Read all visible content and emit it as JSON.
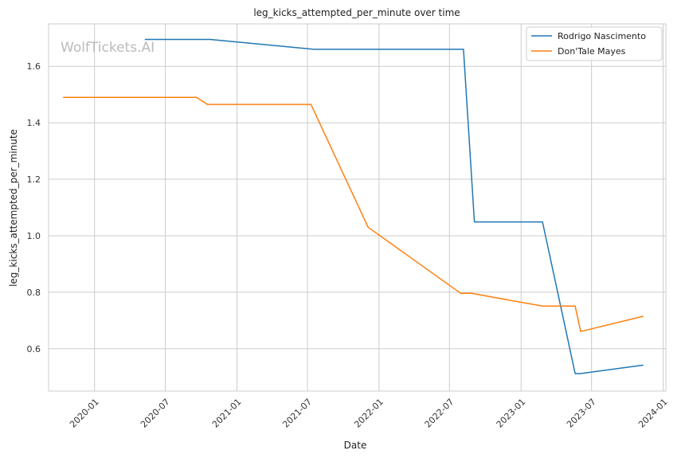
{
  "chart_data": {
    "type": "line",
    "title": "leg_kicks_attempted_per_minute over time",
    "xlabel": "Date",
    "ylabel": "leg_kicks_attempted_per_minute",
    "watermark": "WolfTickets.AI",
    "x_axis_type": "date",
    "xlim": [
      "2019-09-05",
      "2024-01-08"
    ],
    "ylim": [
      0.45,
      1.75
    ],
    "x_ticks": [
      "2020-01",
      "2020-07",
      "2021-01",
      "2021-07",
      "2022-01",
      "2022-07",
      "2023-01",
      "2023-07",
      "2024-01"
    ],
    "y_ticks": [
      "0.6",
      "0.8",
      "1.0",
      "1.2",
      "1.4",
      "1.6"
    ],
    "grid": true,
    "legend_position": "top-right",
    "series": [
      {
        "name": "Rodrigo Nascimento",
        "color": "#1f77b4",
        "points": [
          [
            "2020-05-09",
            1.695
          ],
          [
            "2020-10-24",
            1.695
          ],
          [
            "2021-07-17",
            1.66
          ],
          [
            "2022-08-06",
            1.66
          ],
          [
            "2022-09-03",
            1.049
          ],
          [
            "2023-02-25",
            1.049
          ],
          [
            "2023-05-20",
            0.512
          ],
          [
            "2023-06-03",
            0.512
          ],
          [
            "2023-11-11",
            0.542
          ]
        ]
      },
      {
        "name": "Don'Tale Mayes",
        "color": "#ff7f0e",
        "points": [
          [
            "2019-10-12",
            1.49
          ],
          [
            "2020-09-19",
            1.49
          ],
          [
            "2020-10-17",
            1.465
          ],
          [
            "2021-07-10",
            1.465
          ],
          [
            "2021-12-04",
            1.03
          ],
          [
            "2022-07-30",
            0.796
          ],
          [
            "2022-08-27",
            0.796
          ],
          [
            "2023-02-25",
            0.751
          ],
          [
            "2023-05-20",
            0.751
          ],
          [
            "2023-06-03",
            0.661
          ],
          [
            "2023-11-11",
            0.715
          ]
        ]
      }
    ]
  }
}
